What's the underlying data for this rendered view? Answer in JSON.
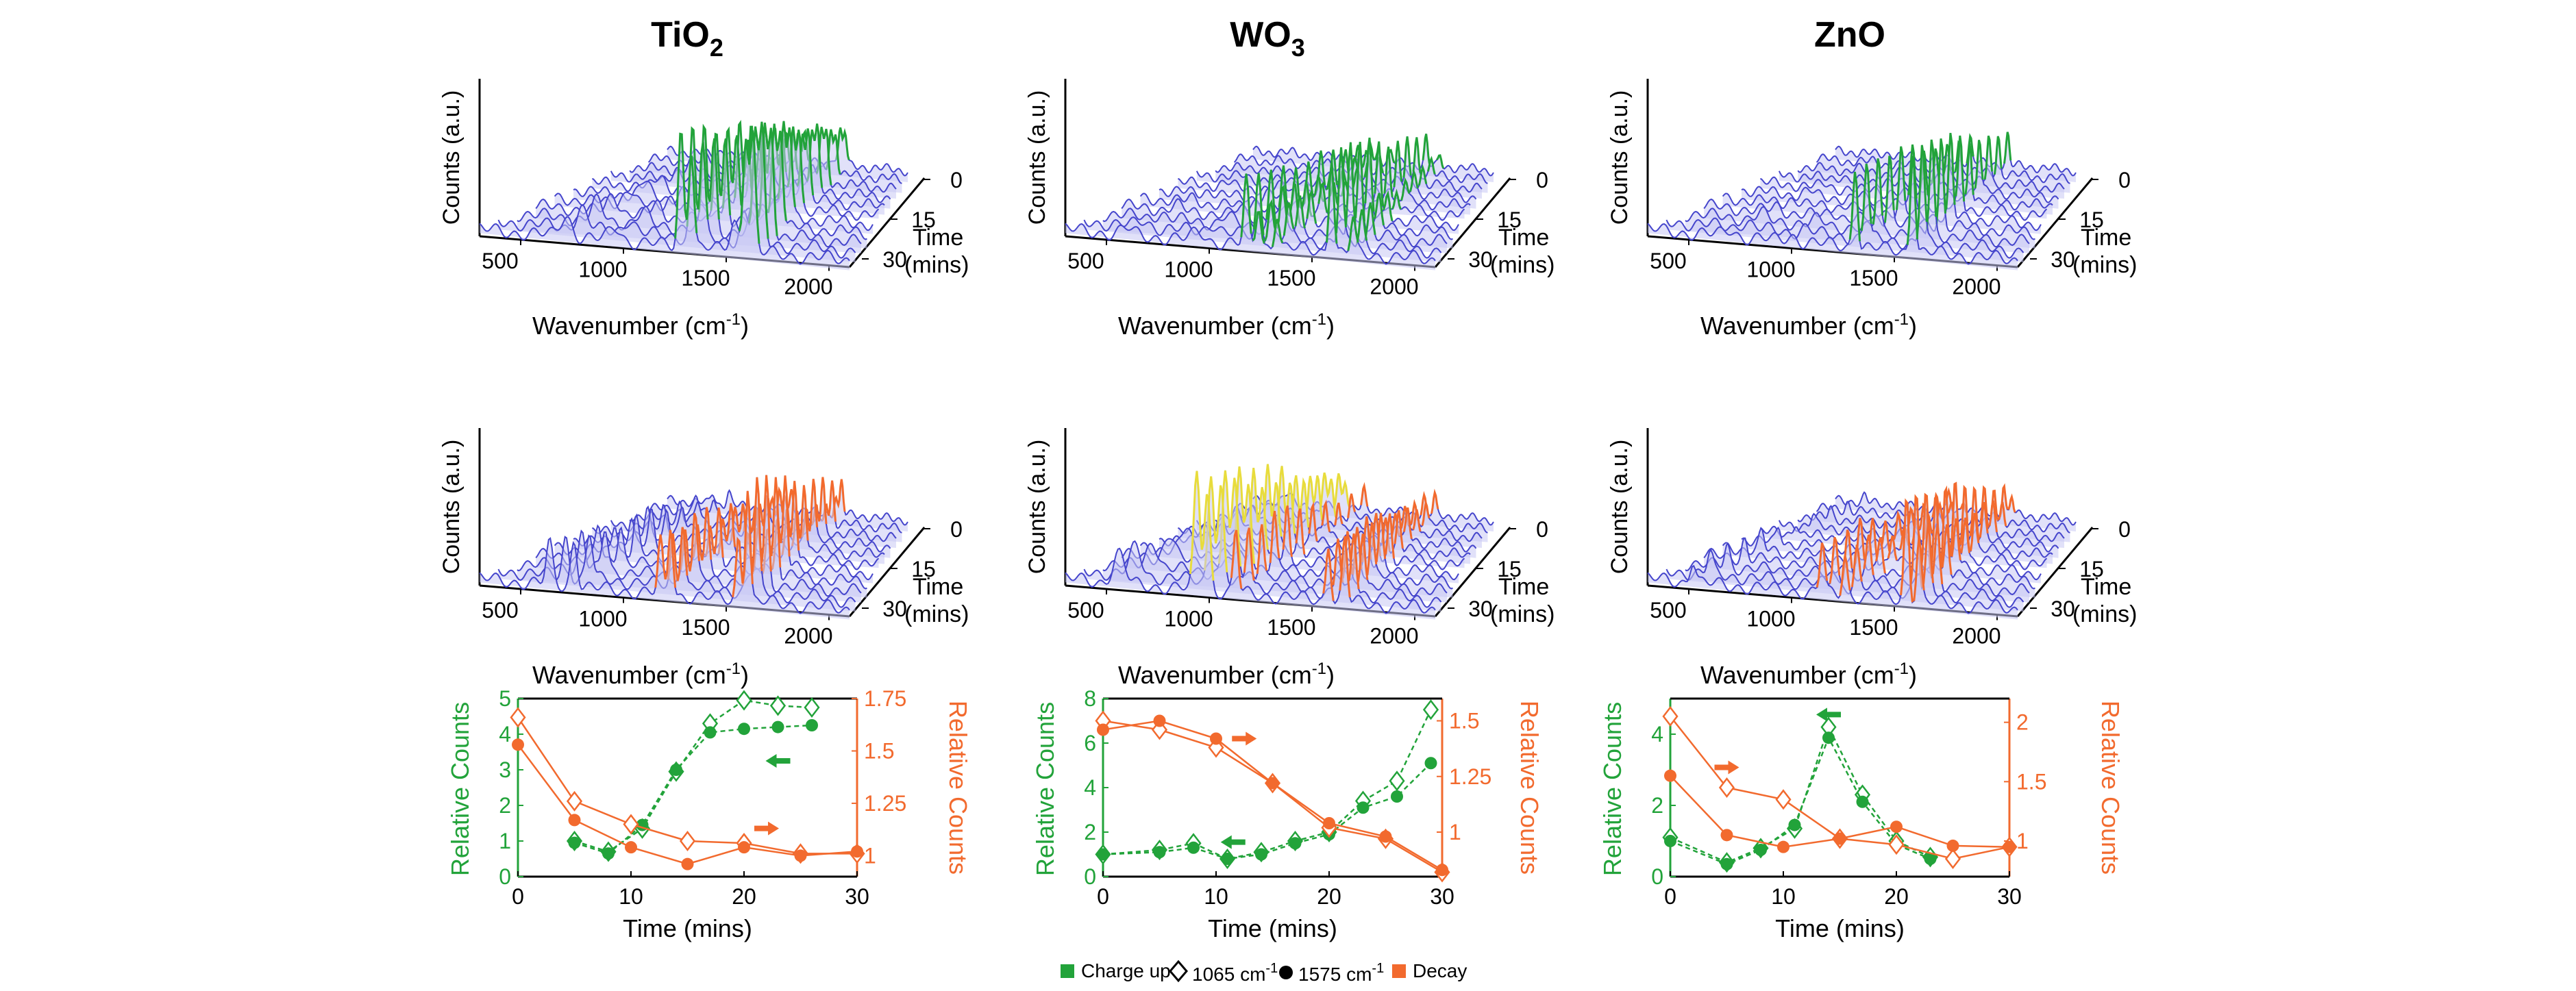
{
  "colors": {
    "charge": "#22a33a",
    "decay": "#f26a2e",
    "base": "#4545cc",
    "fill": "#c8c8f4",
    "yellow": "#e8dc3c",
    "cyan": "#2ab0c8"
  },
  "panels": [
    {
      "title": "TiO",
      "sub": "2"
    },
    {
      "title": "WO",
      "sub": "3"
    },
    {
      "title": "ZnO",
      "sub": ""
    }
  ],
  "waterfall": {
    "ylabel": "Counts (a.u.)",
    "xlabel_main": "Wavenumber (cm",
    "xlabel_sup": "-1",
    "xlabel_end": ")",
    "xticks": [
      "500",
      "1000",
      "1500",
      "2000"
    ],
    "time_ticks": [
      "0",
      "15",
      "30"
    ],
    "time_label_1": "Time",
    "time_label_2": "(mins)"
  },
  "legend": {
    "charge_label": "Charge up",
    "s1065_main": "1065 cm",
    "s1065_sup": "-1",
    "s1575_main": "1575 cm",
    "s1575_sup": "-1",
    "decay_label": "Decay"
  },
  "chart_data": [
    {
      "type": "scatter",
      "title": "TiO2",
      "xlabel": "Time (mins)",
      "ylabel_left": "Relative Counts",
      "ylabel_right": "Relative Counts",
      "xlim": [
        0,
        30
      ],
      "ylim_left": [
        0,
        5
      ],
      "ylim_right": [
        0.9,
        1.75
      ],
      "xticks": [
        0,
        10,
        20,
        30
      ],
      "yticks_left": [
        0,
        1,
        2,
        3,
        4,
        5
      ],
      "yticks_right": [
        1,
        1.25,
        1.5,
        1.75
      ],
      "yticklabels_right": [
        "1",
        "1.25",
        "1.5",
        "1.75"
      ],
      "series": [
        {
          "axis": "left",
          "group": "charge",
          "marker": "diamond",
          "x": [
            5,
            8,
            11,
            14,
            17,
            20,
            23,
            26
          ],
          "y": [
            1.0,
            0.7,
            1.35,
            2.95,
            4.3,
            4.95,
            4.8,
            4.75
          ]
        },
        {
          "axis": "left",
          "group": "charge",
          "marker": "circle",
          "x": [
            5,
            8,
            11,
            14,
            17,
            20,
            23,
            26
          ],
          "y": [
            0.95,
            0.65,
            1.45,
            3.0,
            4.05,
            4.15,
            4.2,
            4.25
          ]
        },
        {
          "axis": "right",
          "group": "decay",
          "marker": "diamond",
          "x": [
            0,
            5,
            10,
            15,
            20,
            25,
            30
          ],
          "y": [
            1.66,
            1.26,
            1.15,
            1.07,
            1.06,
            1.01,
            1.01
          ]
        },
        {
          "axis": "right",
          "group": "decay",
          "marker": "circle",
          "x": [
            0,
            5,
            10,
            15,
            20,
            25,
            30
          ],
          "y": [
            1.53,
            1.17,
            1.04,
            0.96,
            1.04,
            1.0,
            1.02
          ]
        }
      ],
      "arrows": [
        {
          "x": 23,
          "axis": "left",
          "y": 3.25,
          "dir": "left",
          "group": "charge"
        },
        {
          "x": 22,
          "axis": "right",
          "y": 1.13,
          "dir": "right",
          "group": "decay"
        }
      ]
    },
    {
      "type": "scatter",
      "title": "WO3",
      "xlabel": "Time (mins)",
      "ylabel_left": "Relative Counts",
      "ylabel_right": "Relative Counts",
      "xlim": [
        0,
        30
      ],
      "ylim_left": [
        0,
        8
      ],
      "ylim_right": [
        0.8,
        1.6
      ],
      "xticks": [
        0,
        10,
        20,
        30
      ],
      "yticks_left": [
        0,
        2,
        4,
        6,
        8
      ],
      "yticks_right": [
        1,
        1.25,
        1.5
      ],
      "yticklabels_right": [
        "1",
        "1.25",
        "1.5"
      ],
      "series": [
        {
          "axis": "left",
          "group": "charge",
          "marker": "diamond",
          "x": [
            0,
            5,
            8,
            11,
            14,
            17,
            20,
            23,
            26,
            29
          ],
          "y": [
            1.0,
            1.2,
            1.5,
            0.8,
            1.1,
            1.6,
            2.0,
            3.4,
            4.3,
            7.5
          ]
        },
        {
          "axis": "left",
          "group": "charge",
          "marker": "circle",
          "x": [
            0,
            5,
            8,
            11,
            14,
            17,
            20,
            23,
            26,
            29
          ],
          "y": [
            1.0,
            1.1,
            1.3,
            0.8,
            1.0,
            1.5,
            1.9,
            3.1,
            3.6,
            5.1
          ]
        },
        {
          "axis": "right",
          "group": "decay",
          "marker": "diamond",
          "x": [
            0,
            5,
            10,
            15,
            20,
            25,
            30
          ],
          "y": [
            1.5,
            1.46,
            1.38,
            1.22,
            1.02,
            0.97,
            0.82
          ]
        },
        {
          "axis": "right",
          "group": "decay",
          "marker": "circle",
          "x": [
            0,
            5,
            10,
            15,
            20,
            25,
            30
          ],
          "y": [
            1.46,
            1.5,
            1.42,
            1.22,
            1.04,
            0.98,
            0.83
          ]
        }
      ],
      "arrows": [
        {
          "x": 11.5,
          "axis": "left",
          "y": 1.55,
          "dir": "left",
          "group": "charge"
        },
        {
          "x": 12.5,
          "axis": "right",
          "y": 1.42,
          "dir": "right",
          "group": "decay"
        }
      ]
    },
    {
      "type": "scatter",
      "title": "ZnO",
      "xlabel": "Time (mins)",
      "ylabel_left": "Relative Counts",
      "ylabel_right": "Relative Counts",
      "xlim": [
        0,
        30
      ],
      "ylim_left": [
        0,
        5
      ],
      "ylim_right": [
        0.7,
        2.2
      ],
      "xticks": [
        0,
        10,
        20,
        30
      ],
      "yticks_left": [
        0,
        2,
        4
      ],
      "yticks_right": [
        1,
        1.5,
        2
      ],
      "yticklabels_right": [
        "1",
        "1.5",
        "2"
      ],
      "series": [
        {
          "axis": "left",
          "group": "charge",
          "marker": "diamond",
          "x": [
            0,
            5,
            8,
            11,
            14,
            17,
            20,
            23
          ],
          "y": [
            1.1,
            0.4,
            0.8,
            1.35,
            4.2,
            2.3,
            1.0,
            0.55
          ]
        },
        {
          "axis": "left",
          "group": "charge",
          "marker": "circle",
          "x": [
            0,
            5,
            8,
            11,
            14,
            17,
            20,
            23
          ],
          "y": [
            1.0,
            0.35,
            0.75,
            1.45,
            3.9,
            2.1,
            0.9,
            0.5
          ]
        },
        {
          "axis": "right",
          "group": "decay",
          "marker": "diamond",
          "x": [
            0,
            5,
            10,
            15,
            20,
            25,
            30
          ],
          "y": [
            2.05,
            1.45,
            1.35,
            1.02,
            0.97,
            0.85,
            0.95
          ]
        },
        {
          "axis": "right",
          "group": "decay",
          "marker": "circle",
          "x": [
            0,
            5,
            10,
            15,
            20,
            25,
            30
          ],
          "y": [
            1.55,
            1.05,
            0.95,
            1.02,
            1.12,
            0.96,
            0.95
          ]
        }
      ],
      "arrows": [
        {
          "x": 14,
          "axis": "left",
          "y": 4.55,
          "dir": "left",
          "group": "charge"
        },
        {
          "x": 5,
          "axis": "right",
          "y": 1.62,
          "dir": "right",
          "group": "decay"
        }
      ]
    }
  ]
}
